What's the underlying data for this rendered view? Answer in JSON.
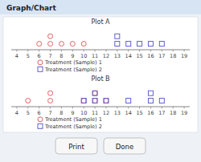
{
  "title": "Graph/Chart",
  "annotations": [
    "Print",
    "Done"
  ],
  "chart_data": [
    {
      "type": "scatter",
      "title": "Plot A",
      "xlim": [
        3.5,
        19.5
      ],
      "xticks": [
        4,
        5,
        6,
        7,
        8,
        9,
        10,
        11,
        12,
        13,
        14,
        15,
        16,
        17,
        18,
        19
      ],
      "ylim": [
        -0.8,
        2.2
      ],
      "tick_labels": "x",
      "grid": false,
      "legend": "bottom",
      "series": [
        {
          "name": "Treatment (Sample) 1",
          "color": "#e06060",
          "marker": "circle",
          "x": [
            6,
            7,
            8,
            9,
            10,
            7
          ],
          "values": [
            0,
            0,
            0,
            0,
            0,
            1
          ]
        },
        {
          "name": "Treatment (Sample) 2",
          "color": "#6060d0",
          "marker": "square",
          "x": [
            13,
            14,
            15,
            16,
            17,
            13
          ],
          "values": [
            0,
            0,
            0,
            0,
            0,
            1
          ]
        }
      ]
    },
    {
      "type": "scatter",
      "title": "Plot B",
      "xlim": [
        3.5,
        19.5
      ],
      "xticks": [
        4,
        5,
        6,
        7,
        8,
        9,
        10,
        11,
        12,
        13,
        14,
        15,
        16,
        17,
        18,
        19
      ],
      "ylim": [
        -0.8,
        2.2
      ],
      "tick_labels": "x",
      "grid": false,
      "legend": "bottom",
      "series": [
        {
          "name": "Treatment (Sample) 1",
          "color": "#e06060",
          "marker": "circle",
          "x": [
            5,
            7,
            10,
            11,
            12,
            7,
            11
          ],
          "values": [
            0,
            0,
            0,
            0,
            0,
            1,
            1
          ]
        },
        {
          "name": "Treatment (Sample) 2",
          "color": "#6060d0",
          "marker": "square",
          "x": [
            10,
            11,
            12,
            14,
            16,
            17,
            11,
            16
          ],
          "values": [
            0,
            0,
            0,
            0,
            0,
            0,
            1,
            1
          ]
        }
      ]
    }
  ]
}
